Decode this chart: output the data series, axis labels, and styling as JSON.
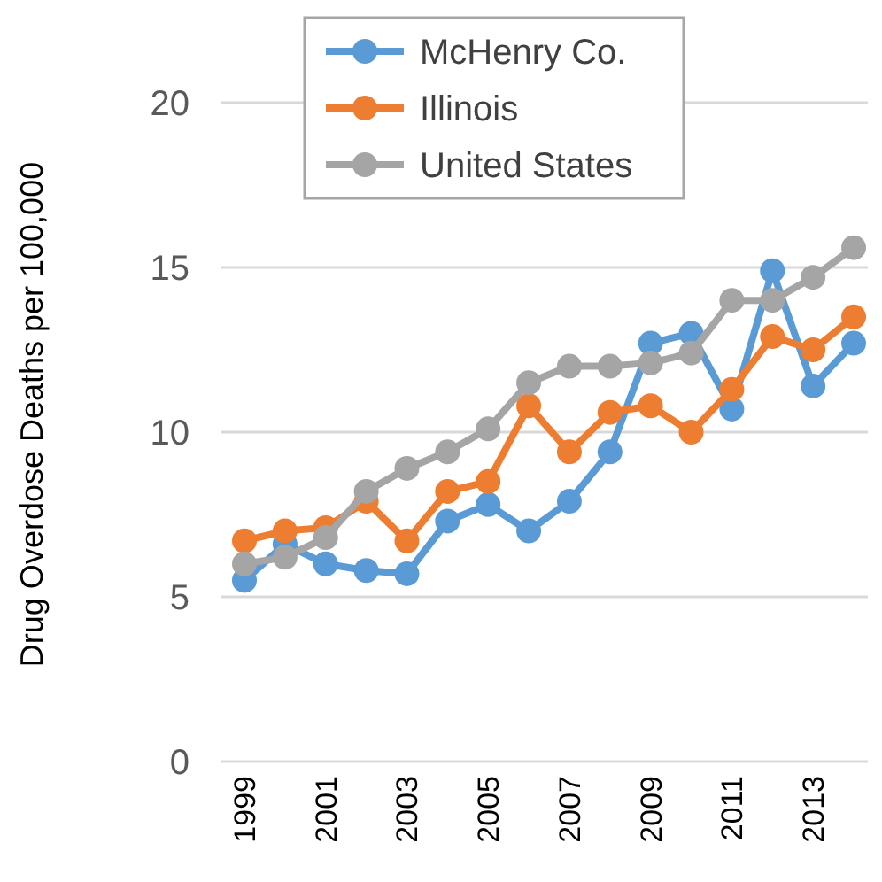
{
  "chart_data": {
    "type": "line",
    "ylabel": "Drug Overdose Deaths per 100,000",
    "categories": [
      "1999",
      null,
      "2001",
      null,
      "2003",
      null,
      "2005",
      null,
      "2007",
      null,
      "2009",
      null,
      "2011",
      null,
      "2013",
      null
    ],
    "series": [
      {
        "name": "McHenry Co.",
        "color": "#5b9bd5",
        "values": [
          5.5,
          6.6,
          6.0,
          5.8,
          5.7,
          7.3,
          7.8,
          7.0,
          7.9,
          9.4,
          12.7,
          13.0,
          10.7,
          14.9,
          11.4,
          12.7
        ]
      },
      {
        "name": "Illinois",
        "color": "#ed7d31",
        "values": [
          6.7,
          7.0,
          7.1,
          7.9,
          6.7,
          8.2,
          8.5,
          10.8,
          9.4,
          10.6,
          10.8,
          10.0,
          11.3,
          12.9,
          12.5,
          13.5
        ]
      },
      {
        "name": "United States",
        "color": "#a5a5a5",
        "values": [
          6.0,
          6.2,
          6.8,
          8.2,
          8.9,
          9.4,
          10.1,
          11.5,
          12.0,
          12.0,
          12.1,
          12.4,
          14.0,
          14.0,
          14.7,
          15.6
        ]
      }
    ],
    "ylim": [
      0,
      20
    ],
    "yticks": [
      0,
      5,
      10,
      15,
      20
    ],
    "grid": "y",
    "legend": "top",
    "marker": "circle",
    "line_style": "solid"
  }
}
